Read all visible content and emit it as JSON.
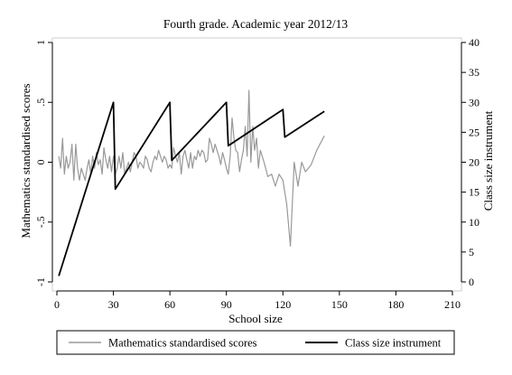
{
  "chart_data": {
    "type": "line",
    "title": "Fourth grade. Academic year 2012/13",
    "xlabel": "School size",
    "ylabel_left": "Mathematics standardised scores",
    "ylabel_right": "Class size instrument",
    "xlim": [
      0,
      210
    ],
    "xticks": [
      "0",
      "30",
      "60",
      "90",
      "120",
      "150",
      "180",
      "210"
    ],
    "ylim_left": [
      -1,
      1
    ],
    "yticks_left": [
      "-1",
      "-.5",
      "0",
      ".5",
      "1"
    ],
    "ylim_right": [
      0,
      40
    ],
    "yticks_right": [
      "0",
      "5",
      "10",
      "15",
      "20",
      "25",
      "30",
      "35",
      "40"
    ],
    "grid": false,
    "legend_position": "bottom",
    "series": [
      {
        "name": "Mathematics standardised scores",
        "axis": "left",
        "color": "#999999",
        "x": [
          1,
          2,
          3,
          4,
          5,
          6,
          7,
          8,
          9,
          10,
          11,
          12,
          13,
          14,
          15,
          16,
          17,
          18,
          19,
          20,
          21,
          22,
          23,
          24,
          25,
          26,
          27,
          28,
          29,
          30,
          31,
          32,
          33,
          34,
          35,
          36,
          37,
          38,
          39,
          40,
          41,
          42,
          43,
          44,
          45,
          46,
          47,
          48,
          49,
          50,
          51,
          52,
          53,
          54,
          55,
          56,
          57,
          58,
          59,
          60,
          61,
          62,
          63,
          64,
          65,
          66,
          67,
          68,
          69,
          70,
          71,
          72,
          73,
          74,
          75,
          76,
          77,
          78,
          79,
          80,
          81,
          82,
          83,
          84,
          85,
          86,
          87,
          88,
          89,
          90,
          91,
          92,
          93,
          94,
          95,
          96,
          97,
          98,
          99,
          100,
          101,
          102,
          103,
          104,
          105,
          106,
          107,
          108,
          110,
          112,
          114,
          116,
          118,
          120,
          122,
          124,
          126,
          128,
          130,
          132,
          135,
          138,
          142
        ],
        "y": [
          0.05,
          -0.05,
          0.2,
          -0.1,
          0.05,
          -0.05,
          0.0,
          0.15,
          -0.15,
          0.15,
          -0.05,
          -0.15,
          -0.05,
          -0.1,
          -0.15,
          -0.05,
          0.02,
          -0.1,
          0.05,
          -0.05,
          0.08,
          -0.02,
          0.02,
          -0.1,
          0.12,
          0.02,
          -0.05,
          0.05,
          -0.08,
          0.05,
          -0.1,
          -0.05,
          0.05,
          -0.05,
          0.08,
          -0.1,
          -0.05,
          0.0,
          -0.08,
          0.0,
          0.08,
          0.05,
          -0.05,
          0.0,
          -0.02,
          -0.05,
          0.05,
          0.02,
          -0.05,
          -0.08,
          0.0,
          0.05,
          0.02,
          0.1,
          0.05,
          0.0,
          0.05,
          0.02,
          -0.05,
          -0.02,
          -0.05,
          0.12,
          0.05,
          0.0,
          0.08,
          -0.1,
          0.05,
          0.1,
          0.02,
          -0.05,
          0.08,
          -0.05,
          0.05,
          0.02,
          0.1,
          0.05,
          0.1,
          0.08,
          0.0,
          0.02,
          0.2,
          0.15,
          0.08,
          0.15,
          0.1,
          0.05,
          -0.02,
          0.08,
          0.02,
          -0.05,
          -0.1,
          0.05,
          0.37,
          0.2,
          0.1,
          0.08,
          -0.08,
          0.02,
          0.1,
          0.3,
          0.05,
          0.6,
          0.0,
          0.3,
          0.1,
          0.2,
          -0.05,
          0.1,
          0.0,
          -0.12,
          -0.1,
          -0.2,
          -0.1,
          -0.15,
          -0.35,
          -0.7,
          0.0,
          -0.2,
          0.0,
          -0.08,
          -0.02,
          0.1,
          0.22
        ]
      },
      {
        "name": "Class size instrument",
        "axis": "right",
        "color": "#000000",
        "x": [
          1,
          30,
          31,
          60,
          61,
          90,
          91,
          120,
          121,
          142
        ],
        "y": [
          1,
          30,
          15.5,
          30,
          20.3,
          30,
          22.75,
          28.8,
          24.2,
          28.5
        ]
      }
    ]
  }
}
